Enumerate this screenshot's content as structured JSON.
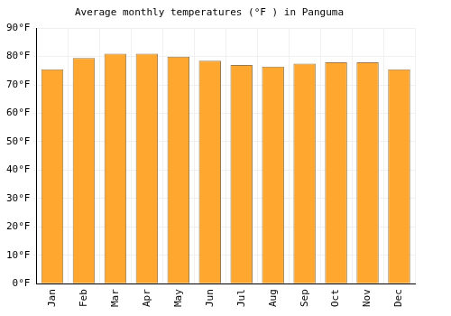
{
  "chart_data": {
    "type": "bar",
    "title": "Average monthly temperatures (°F ) in Panguma",
    "categories": [
      "Jan",
      "Feb",
      "Mar",
      "Apr",
      "May",
      "Jun",
      "Jul",
      "Aug",
      "Sep",
      "Oct",
      "Nov",
      "Dec"
    ],
    "values": [
      75.5,
      79.5,
      81,
      81,
      80,
      78.5,
      77,
      76.5,
      77.5,
      78,
      78,
      75.5
    ],
    "color": "#ffa72e",
    "ylim": [
      0,
      90
    ],
    "yticks": [
      {
        "value": 0,
        "label": "0°F"
      },
      {
        "value": 10,
        "label": "10°F"
      },
      {
        "value": 20,
        "label": "20°F"
      },
      {
        "value": 30,
        "label": "30°F"
      },
      {
        "value": 40,
        "label": "40°F"
      },
      {
        "value": 50,
        "label": "50°F"
      },
      {
        "value": 60,
        "label": "60°F"
      },
      {
        "value": 70,
        "label": "70°F"
      },
      {
        "value": 80,
        "label": "80°F"
      },
      {
        "value": 90,
        "label": "90°F"
      }
    ],
    "grid": true
  }
}
